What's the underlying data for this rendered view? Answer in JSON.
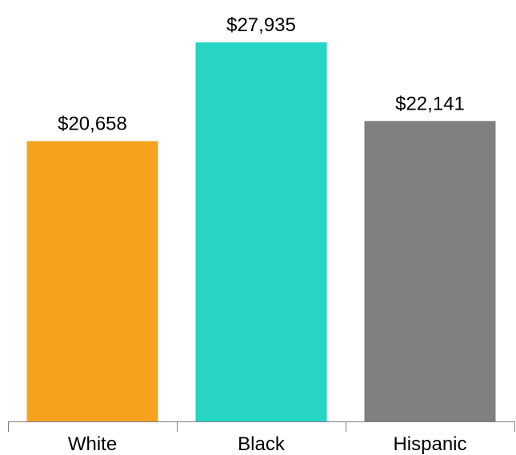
{
  "chart_data": {
    "type": "bar",
    "title": "",
    "xlabel": "",
    "ylabel": "",
    "categories": [
      "White",
      "Black",
      "Hispanic"
    ],
    "values": [
      20658,
      27935,
      22141
    ],
    "data_labels": [
      "$20,658",
      "$27,935",
      "$22,141"
    ],
    "colors": [
      "#F7A21E",
      "#26D5C3",
      "#808083"
    ],
    "ylim": [
      0,
      27935
    ],
    "grid": false,
    "legend": "none"
  }
}
